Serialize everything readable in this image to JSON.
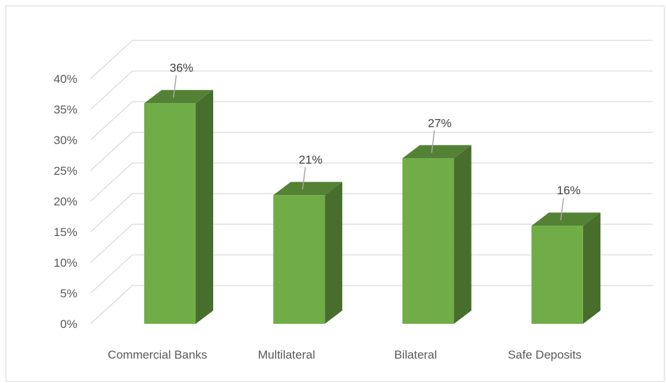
{
  "chart_data": {
    "type": "bar",
    "style": "3d-column",
    "categories": [
      "Commercial Banks",
      "Multilateral",
      "Bilateral",
      "Safe Deposits"
    ],
    "values": [
      36,
      21,
      27,
      16
    ],
    "data_labels": [
      "36%",
      "21%",
      "27%",
      "16%"
    ],
    "yticks": [
      0,
      5,
      10,
      15,
      20,
      25,
      30,
      35,
      40
    ],
    "ytick_labels": [
      "0%",
      "5%",
      "10%",
      "15%",
      "20%",
      "25%",
      "30%",
      "35%",
      "40%"
    ],
    "ylim": [
      0,
      40
    ],
    "grid": true,
    "legend": "none",
    "colors": {
      "bar_front": "#70ad47",
      "bar_top": "#548235",
      "bar_side": "#476e2c",
      "grid": "#d9d9d9",
      "text": "#595959"
    }
  }
}
